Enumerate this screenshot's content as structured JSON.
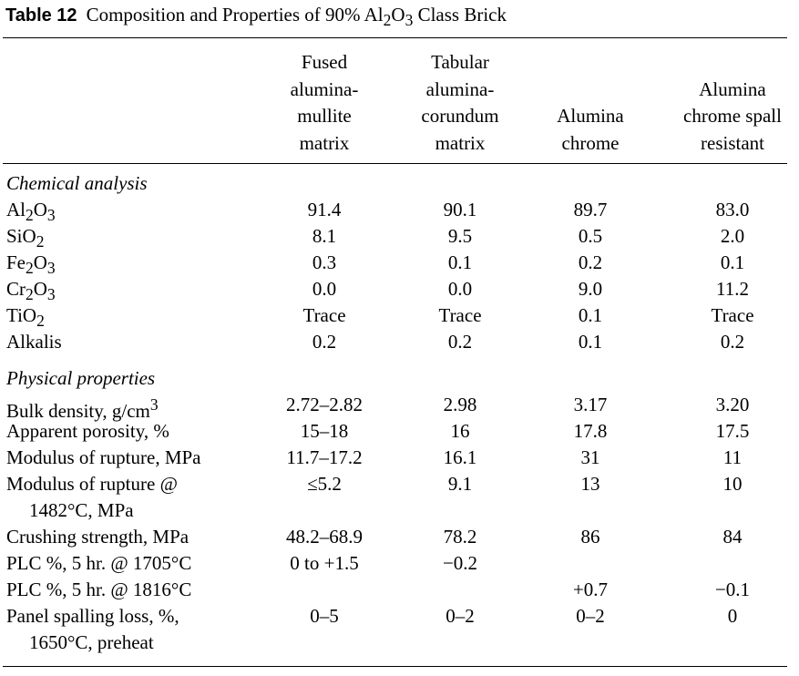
{
  "title": {
    "label": "Table 12",
    "caption_a": "Composition and Properties of 90% Al",
    "caption_sub_a": "2",
    "caption_b": "O",
    "caption_sub_b": "3",
    "caption_c": " Class Brick"
  },
  "headers": [
    {
      "lines": [
        "Fused",
        "alumina-",
        "mullite",
        "matrix"
      ]
    },
    {
      "lines": [
        "Tabular",
        "alumina-",
        "corundum",
        "matrix"
      ]
    },
    {
      "lines": [
        "Alumina",
        "chrome"
      ]
    },
    {
      "lines": [
        "Alumina",
        "chrome spall",
        "resistant"
      ]
    }
  ],
  "sections": {
    "chemical": {
      "title": "Chemical analysis",
      "rows": [
        {
          "label": {
            "parts": [
              "Al",
              "2",
              "O",
              "3"
            ]
          },
          "values": [
            "91.4",
            "90.1",
            "89.7",
            "83.0"
          ]
        },
        {
          "label": {
            "parts": [
              "SiO",
              "2"
            ]
          },
          "values": [
            "8.1",
            "9.5",
            "0.5",
            "2.0"
          ]
        },
        {
          "label": {
            "parts": [
              "Fe",
              "2",
              "O",
              "3"
            ]
          },
          "values": [
            "0.3",
            "0.1",
            "0.2",
            "0.1"
          ]
        },
        {
          "label": {
            "parts": [
              "Cr",
              "2",
              "O",
              "3"
            ]
          },
          "values": [
            "0.0",
            "0.0",
            "9.0",
            "11.2"
          ]
        },
        {
          "label": {
            "parts": [
              "TiO",
              "2"
            ]
          },
          "values": [
            "Trace",
            "Trace",
            "0.1",
            "Trace"
          ]
        },
        {
          "label": {
            "parts": [
              "Alkalis"
            ]
          },
          "values": [
            "0.2",
            "0.2",
            "0.1",
            "0.2"
          ]
        }
      ]
    },
    "physical": {
      "title": "Physical properties",
      "rows": [
        {
          "label": {
            "parts": [
              "Bulk density, g/cm",
              "3"
            ]
          },
          "values": [
            "2.72–2.82",
            "2.98",
            "3.17",
            "3.20"
          ]
        },
        {
          "label": {
            "parts": [
              "Apparent porosity, %"
            ]
          },
          "values": [
            "15–18",
            "16",
            "17.8",
            "17.5"
          ]
        },
        {
          "label": {
            "parts": [
              "Modulus of rupture, MPa"
            ]
          },
          "values": [
            "11.7–17.2",
            "16.1",
            "31",
            "11"
          ]
        },
        {
          "label": {
            "parts": [
              "Modulus of rupture @"
            ]
          },
          "wrap": "1482°C, MPa",
          "values": [
            "≤5.2",
            "9.1",
            "13",
            "10"
          ]
        },
        {
          "label": {
            "parts": [
              "Crushing strength, MPa"
            ]
          },
          "values": [
            "48.2–68.9",
            "78.2",
            "86",
            "84"
          ]
        },
        {
          "label": {
            "parts": [
              "PLC %, 5 hr. @ 1705°C"
            ]
          },
          "values": [
            "0 to +1.5",
            "−0.2",
            "",
            ""
          ]
        },
        {
          "label": {
            "parts": [
              "PLC %, 5 hr. @ 1816°C"
            ]
          },
          "values": [
            "",
            "",
            "+0.7",
            "−0.1"
          ]
        },
        {
          "label": {
            "parts": [
              "Panel spalling loss, %,"
            ]
          },
          "wrap": "1650°C, preheat",
          "values": [
            "0–5",
            "0–2",
            "0–2",
            "0"
          ]
        }
      ]
    }
  }
}
